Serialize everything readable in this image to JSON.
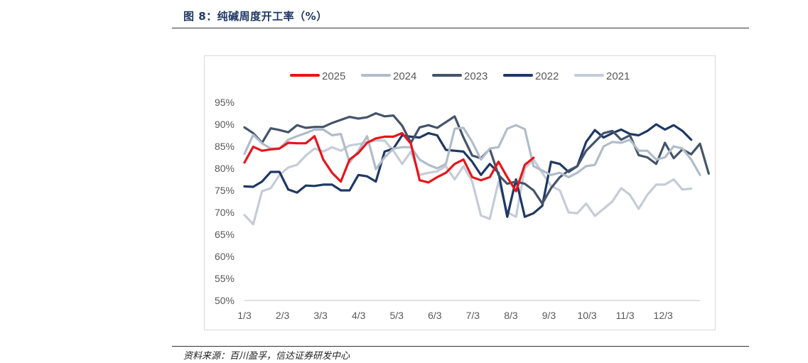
{
  "figure": {
    "title": "图 8：纯碱周度开工率（%）",
    "source": "资料来源：百川盈孚，信达证券研发中心"
  },
  "chart_data": {
    "type": "line",
    "x_unit": "week of year",
    "x_tick_labels": [
      "1/3",
      "2/3",
      "3/3",
      "4/3",
      "5/3",
      "6/3",
      "7/3",
      "8/3",
      "9/3",
      "10/3",
      "11/3",
      "12/3"
    ],
    "ylim": [
      50,
      95
    ],
    "y_ticks": [
      50,
      55,
      60,
      65,
      70,
      75,
      80,
      85,
      90,
      95
    ],
    "y_tick_labels": [
      "50%",
      "55%",
      "60%",
      "65%",
      "70%",
      "75%",
      "80%",
      "85%",
      "90%",
      "95%"
    ],
    "grid": false,
    "legend_position": "top",
    "series": [
      {
        "name": "2025",
        "color": "#e8141b",
        "width": 3.2,
        "values": [
          81.3,
          84.9,
          84.0,
          84.3,
          84.5,
          85.8,
          85.7,
          85.7,
          87.3,
          82.0,
          79.0,
          77.0,
          82.0,
          83.5,
          85.8,
          86.8,
          87.2,
          87.2,
          88.0,
          85.6,
          77.3,
          76.8,
          78.0,
          79.0,
          81.0,
          82.0,
          78.0,
          77.3,
          78.0,
          81.5,
          78.0,
          74.8,
          80.8,
          82.4
        ]
      },
      {
        "name": "2024",
        "color": "#b0bccb",
        "width": 3.2,
        "values": [
          83.3,
          87.6,
          85.7,
          84.5,
          84.5,
          86.5,
          87.3,
          88.0,
          88.8,
          88.8,
          87.5,
          87.8,
          81.3,
          84.0,
          87.3,
          79.8,
          82.5,
          84.5,
          84.8,
          84.8,
          82.0,
          80.8,
          80.0,
          81.0,
          89.0,
          89.2,
          86.0,
          82.0,
          84.5,
          84.8,
          89.0,
          89.8,
          88.9,
          80.5,
          79.5,
          78.5,
          79.0,
          78.0,
          79.0,
          80.5,
          80.8,
          85.0,
          86.0,
          85.8,
          86.5,
          84.0,
          84.0,
          82.0,
          82.5,
          85.0,
          84.5,
          82.0,
          78.5
        ]
      },
      {
        "name": "2023",
        "color": "#44546a",
        "width": 3.2,
        "values": [
          89.3,
          88.0,
          85.8,
          89.1,
          88.7,
          88.2,
          89.8,
          89.2,
          89.4,
          89.4,
          90.3,
          91.0,
          91.7,
          91.3,
          91.6,
          92.5,
          91.8,
          92.0,
          89.7,
          85.8,
          89.3,
          89.8,
          89.2,
          90.5,
          91.8,
          87.0,
          82.9,
          82.3,
          84.4,
          78.5,
          76.5,
          77.0,
          76.5,
          75.0,
          72.0,
          75.5,
          78.0,
          79.5,
          80.5,
          84.0,
          86.0,
          88.0,
          88.5,
          86.5,
          87.5,
          83.0,
          82.5,
          81.0,
          85.8,
          82.3,
          84.3,
          83.2,
          85.6,
          78.8
        ]
      },
      {
        "name": "2022",
        "color": "#1f3864",
        "width": 3.2,
        "values": [
          75.9,
          75.8,
          77.0,
          79.2,
          79.2,
          75.2,
          74.5,
          76.1,
          76.0,
          76.3,
          76.3,
          75.0,
          75.0,
          78.5,
          78.2,
          77.0,
          83.8,
          84.5,
          87.5,
          87.2,
          87.0,
          88.0,
          87.5,
          84.2,
          84.0,
          83.8,
          81.5,
          78.5,
          81.0,
          79.0,
          69.0,
          77.5,
          69.0,
          69.8,
          71.5,
          81.5,
          81.0,
          79.2,
          80.5,
          86.0,
          88.7,
          87.0,
          88.0,
          88.8,
          87.8,
          87.5,
          88.5,
          90.0,
          88.8,
          89.8,
          88.5,
          86.5
        ]
      },
      {
        "name": "2021",
        "color": "#c4ccd7",
        "width": 3.2,
        "values": [
          69.4,
          67.3,
          74.8,
          75.5,
          78.5,
          80.2,
          80.8,
          82.9,
          84.5,
          83.8,
          84.8,
          84.0,
          85.2,
          85.5,
          86.0,
          86.3,
          86.3,
          84.0,
          81.0,
          83.8,
          78.5,
          79.0,
          79.3,
          80.5,
          77.5,
          80.5,
          77.0,
          69.3,
          68.5,
          77.0,
          70.0,
          69.0,
          80.0,
          82.0,
          79.0,
          76.0,
          75.0,
          70.0,
          69.8,
          72.0,
          69.2,
          70.8,
          72.5,
          75.5,
          74.0,
          70.8,
          74.0,
          76.3,
          76.3,
          77.5,
          75.2,
          75.4
        ]
      }
    ]
  }
}
